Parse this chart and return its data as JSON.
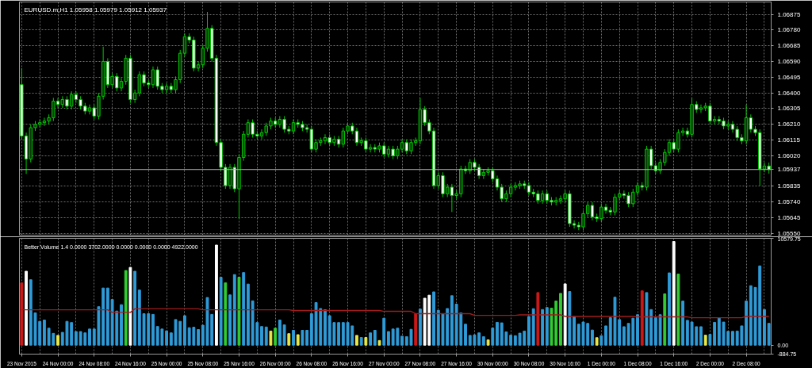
{
  "chart_data": [
    {
      "type": "candlestick",
      "title": "EURUSD.m,H1 1.05958 1.05979 1.05912 1.05937",
      "categories": [
        null,
        null,
        null,
        null,
        null,
        null,
        null,
        null,
        null,
        null,
        null,
        null,
        null,
        null,
        null,
        null,
        null,
        null,
        null,
        null,
        null,
        null,
        null,
        null,
        null,
        null,
        null,
        null,
        null,
        null,
        null,
        null,
        null,
        null,
        null,
        null,
        null,
        null,
        null,
        null,
        null,
        null,
        null,
        null,
        null,
        null,
        null,
        null,
        null,
        null,
        null,
        null,
        null,
        null,
        null,
        null,
        null,
        null,
        null,
        null,
        null,
        null,
        null,
        null,
        null,
        null,
        null,
        null,
        null,
        null,
        null,
        null,
        null,
        null,
        null,
        null,
        null,
        null,
        null,
        null,
        null,
        null,
        null,
        null,
        null,
        null,
        null,
        null,
        null,
        null,
        null,
        null,
        null,
        null,
        null,
        null,
        null,
        null,
        null,
        null,
        null,
        null,
        null,
        null,
        null,
        null,
        null,
        null,
        null,
        null,
        null,
        null,
        null,
        null,
        null,
        null,
        null,
        null,
        null,
        null,
        null,
        null,
        null,
        null,
        null,
        null,
        null,
        null,
        null,
        null,
        null,
        null,
        null,
        null,
        null,
        null,
        null,
        null,
        null,
        null,
        null,
        null,
        null,
        null,
        null,
        null,
        null,
        null,
        null,
        null,
        null,
        null,
        null,
        null,
        null,
        null,
        null,
        null,
        null,
        null,
        null,
        null,
        null,
        null,
        null,
        null
      ],
      "color": "#00c800",
      "ohlc": [
        [
          1.0645,
          1.0655,
          1.0612,
          1.0614
        ],
        [
          1.0614,
          1.0616,
          1.0591,
          1.06
        ],
        [
          1.06,
          1.0621,
          1.0598,
          1.0619
        ],
        [
          1.0619,
          1.0623,
          1.0617,
          1.0621
        ],
        [
          1.0621,
          1.0624,
          1.0619,
          1.0622
        ],
        [
          1.0622,
          1.0625,
          1.062,
          1.0623
        ],
        [
          1.0623,
          1.0627,
          1.0621,
          1.0625
        ],
        [
          1.0625,
          1.0637,
          1.0623,
          1.0635
        ],
        [
          1.0635,
          1.0637,
          1.0631,
          1.0633
        ],
        [
          1.0633,
          1.0638,
          1.0631,
          1.0636
        ],
        [
          1.0636,
          1.0638,
          1.063,
          1.0632
        ],
        [
          1.0632,
          1.0641,
          1.063,
          1.0639
        ],
        [
          1.0639,
          1.0641,
          1.0634,
          1.0636
        ],
        [
          1.0636,
          1.0638,
          1.063,
          1.0632
        ],
        [
          1.0632,
          1.0634,
          1.0627,
          1.0629
        ],
        [
          1.0629,
          1.0633,
          1.0627,
          1.0631
        ],
        [
          1.0631,
          1.0633,
          1.0624,
          1.0626
        ],
        [
          1.0626,
          1.064,
          1.0624,
          1.0638
        ],
        [
          1.0638,
          1.0668,
          1.0636,
          1.0659
        ],
        [
          1.0659,
          1.0661,
          1.0643,
          1.0645
        ],
        [
          1.0645,
          1.0652,
          1.0643,
          1.065
        ],
        [
          1.065,
          1.0652,
          1.0641,
          1.0643
        ],
        [
          1.0643,
          1.0649,
          1.0641,
          1.0647
        ],
        [
          1.0647,
          1.0663,
          1.0645,
          1.0661
        ],
        [
          1.0661,
          1.0663,
          1.0634,
          1.0636
        ],
        [
          1.0636,
          1.0642,
          1.0634,
          1.064
        ],
        [
          1.064,
          1.0653,
          1.0638,
          1.0651
        ],
        [
          1.0651,
          1.0653,
          1.0644,
          1.0646
        ],
        [
          1.0646,
          1.0648,
          1.0643,
          1.0645
        ],
        [
          1.0645,
          1.0656,
          1.0643,
          1.0654
        ],
        [
          1.0654,
          1.0656,
          1.0642,
          1.0644
        ],
        [
          1.0644,
          1.0646,
          1.064,
          1.0642
        ],
        [
          1.0642,
          1.0646,
          1.064,
          1.0644
        ],
        [
          1.0644,
          1.0646,
          1.064,
          1.0642
        ],
        [
          1.0642,
          1.065,
          1.064,
          1.0648
        ],
        [
          1.0648,
          1.0666,
          1.0646,
          1.0664
        ],
        [
          1.0664,
          1.0676,
          1.0662,
          1.0674
        ],
        [
          1.0674,
          1.0676,
          1.067,
          1.0672
        ],
        [
          1.0672,
          1.0674,
          1.0653,
          1.0655
        ],
        [
          1.0655,
          1.0659,
          1.0653,
          1.0657
        ],
        [
          1.0657,
          1.0669,
          1.0655,
          1.0667
        ],
        [
          1.0667,
          1.0689,
          1.0665,
          1.0679
        ],
        [
          1.0679,
          1.0681,
          1.0659,
          1.0661
        ],
        [
          1.0661,
          1.0663,
          1.0608,
          1.061
        ],
        [
          1.061,
          1.0612,
          1.0593,
          1.0595
        ],
        [
          1.0595,
          1.0597,
          1.0582,
          1.0584
        ],
        [
          1.0584,
          1.0597,
          1.0582,
          1.0595
        ],
        [
          1.0595,
          1.0597,
          1.058,
          1.0582
        ],
        [
          1.0582,
          1.0603,
          1.0564,
          1.0601
        ],
        [
          1.0601,
          1.0617,
          1.0599,
          1.0615
        ],
        [
          1.0615,
          1.0624,
          1.0613,
          1.0622
        ],
        [
          1.0622,
          1.0624,
          1.0613,
          1.0615
        ],
        [
          1.0615,
          1.0617,
          1.0612,
          1.0614
        ],
        [
          1.0614,
          1.0618,
          1.0612,
          1.0616
        ],
        [
          1.0616,
          1.0622,
          1.0614,
          1.062
        ],
        [
          1.062,
          1.0625,
          1.0618,
          1.0623
        ],
        [
          1.0623,
          1.0625,
          1.0619,
          1.0621
        ],
        [
          1.0621,
          1.0626,
          1.0619,
          1.0624
        ],
        [
          1.0624,
          1.0626,
          1.0616,
          1.0618
        ],
        [
          1.0618,
          1.062,
          1.0615,
          1.0617
        ],
        [
          1.0617,
          1.0624,
          1.0615,
          1.0622
        ],
        [
          1.0622,
          1.0624,
          1.0619,
          1.0621
        ],
        [
          1.0621,
          1.0623,
          1.0617,
          1.0619
        ],
        [
          1.0619,
          1.0621,
          1.0616,
          1.0618
        ],
        [
          1.0618,
          1.062,
          1.0604,
          1.0606
        ],
        [
          1.0606,
          1.0612,
          1.0604,
          1.061
        ],
        [
          1.061,
          1.0613,
          1.0608,
          1.0611
        ],
        [
          1.0611,
          1.0615,
          1.0609,
          1.0613
        ],
        [
          1.0613,
          1.0615,
          1.0608,
          1.061
        ],
        [
          1.061,
          1.0614,
          1.0608,
          1.0612
        ],
        [
          1.0612,
          1.0614,
          1.0607,
          1.0609
        ],
        [
          1.0609,
          1.0619,
          1.0607,
          1.0617
        ],
        [
          1.0617,
          1.0622,
          1.0615,
          1.062
        ],
        [
          1.062,
          1.0622,
          1.0615,
          1.0617
        ],
        [
          1.0617,
          1.0619,
          1.0608,
          1.061
        ],
        [
          1.061,
          1.0613,
          1.0608,
          1.0611
        ],
        [
          1.0611,
          1.0613,
          1.0604,
          1.0606
        ],
        [
          1.0606,
          1.0609,
          1.0604,
          1.0607
        ],
        [
          1.0607,
          1.0609,
          1.0604,
          1.0606
        ],
        [
          1.0606,
          1.061,
          1.0604,
          1.0608
        ],
        [
          1.0608,
          1.061,
          1.0601,
          1.0603
        ],
        [
          1.0603,
          1.0608,
          1.0601,
          1.0606
        ],
        [
          1.0606,
          1.0608,
          1.06,
          1.0602
        ],
        [
          1.0602,
          1.0608,
          1.06,
          1.0606
        ],
        [
          1.0606,
          1.0612,
          1.0604,
          1.061
        ],
        [
          1.061,
          1.0612,
          1.0603,
          1.0605
        ],
        [
          1.0605,
          1.0612,
          1.0603,
          1.061
        ],
        [
          1.061,
          1.0613,
          1.0608,
          1.0611
        ],
        [
          1.0611,
          1.0637,
          1.0609,
          1.063
        ],
        [
          1.063,
          1.0632,
          1.062,
          1.0622
        ],
        [
          1.0622,
          1.0624,
          1.0615,
          1.0617
        ],
        [
          1.0617,
          1.0619,
          1.0582,
          1.0584
        ],
        [
          1.0584,
          1.0592,
          1.0582,
          1.059
        ],
        [
          1.059,
          1.0592,
          1.0577,
          1.0579
        ],
        [
          1.0579,
          1.0585,
          1.0577,
          1.0583
        ],
        [
          1.0583,
          1.0585,
          1.0568,
          1.0578
        ],
        [
          1.0578,
          1.0581,
          1.0576,
          1.0579
        ],
        [
          1.0579,
          1.0596,
          1.0577,
          1.0594
        ],
        [
          1.0594,
          1.0596,
          1.0591,
          1.0593
        ],
        [
          1.0593,
          1.06,
          1.0591,
          1.0598
        ],
        [
          1.0598,
          1.06,
          1.0593,
          1.0595
        ],
        [
          1.0595,
          1.0597,
          1.0588,
          1.059
        ],
        [
          1.059,
          1.0594,
          1.0588,
          1.0592
        ],
        [
          1.0592,
          1.0595,
          1.059,
          1.0593
        ],
        [
          1.0593,
          1.0595,
          1.0586,
          1.0588
        ],
        [
          1.0588,
          1.059,
          1.0581,
          1.0583
        ],
        [
          1.0583,
          1.0585,
          1.0574,
          1.0576
        ],
        [
          1.0576,
          1.0581,
          1.0574,
          1.0579
        ],
        [
          1.0579,
          1.0585,
          1.0577,
          1.0583
        ],
        [
          1.0583,
          1.0586,
          1.0581,
          1.0584
        ],
        [
          1.0584,
          1.0587,
          1.0582,
          1.0585
        ],
        [
          1.0585,
          1.0587,
          1.0582,
          1.0584
        ],
        [
          1.0584,
          1.0586,
          1.0578,
          1.058
        ],
        [
          1.058,
          1.0582,
          1.0577,
          1.0579
        ],
        [
          1.0579,
          1.0581,
          1.0573,
          1.0575
        ],
        [
          1.0575,
          1.0581,
          1.0573,
          1.0579
        ],
        [
          1.0579,
          1.0581,
          1.0573,
          1.0575
        ],
        [
          1.0575,
          1.0577,
          1.0572,
          1.0574
        ],
        [
          1.0574,
          1.0577,
          1.0572,
          1.0575
        ],
        [
          1.0575,
          1.0578,
          1.0573,
          1.0576
        ],
        [
          1.0576,
          1.0581,
          1.0574,
          1.0579
        ],
        [
          1.0579,
          1.0581,
          1.0559,
          1.0561
        ],
        [
          1.0561,
          1.0563,
          1.0558,
          1.056
        ],
        [
          1.056,
          1.0562,
          1.0557,
          1.0559
        ],
        [
          1.0559,
          1.0569,
          1.0557,
          1.0567
        ],
        [
          1.0567,
          1.0574,
          1.0565,
          1.0572
        ],
        [
          1.0572,
          1.0574,
          1.0563,
          1.0565
        ],
        [
          1.0565,
          1.0567,
          1.0562,
          1.0564
        ],
        [
          1.0564,
          1.0573,
          1.0562,
          1.0571
        ],
        [
          1.0571,
          1.0573,
          1.0567,
          1.0569
        ],
        [
          1.0569,
          1.0571,
          1.0566,
          1.0568
        ],
        [
          1.0568,
          1.0579,
          1.0566,
          1.0577
        ],
        [
          1.0577,
          1.0581,
          1.0575,
          1.0579
        ],
        [
          1.0579,
          1.0581,
          1.0576,
          1.0578
        ],
        [
          1.0578,
          1.058,
          1.0571,
          1.0573
        ],
        [
          1.0573,
          1.0582,
          1.0571,
          1.058
        ],
        [
          1.058,
          1.0586,
          1.0578,
          1.0584
        ],
        [
          1.0584,
          1.0586,
          1.0581,
          1.0583
        ],
        [
          1.0583,
          1.0608,
          1.0581,
          1.0606
        ],
        [
          1.0606,
          1.0608,
          1.0594,
          1.0596
        ],
        [
          1.0596,
          1.0598,
          1.0591,
          1.0593
        ],
        [
          1.0593,
          1.06,
          1.0591,
          1.0598
        ],
        [
          1.0598,
          1.0606,
          1.0596,
          1.0604
        ],
        [
          1.0604,
          1.0612,
          1.0602,
          1.061
        ],
        [
          1.061,
          1.0612,
          1.0604,
          1.0606
        ],
        [
          1.0606,
          1.0618,
          1.0604,
          1.0616
        ],
        [
          1.0616,
          1.0619,
          1.0614,
          1.0617
        ],
        [
          1.0617,
          1.0619,
          1.0613,
          1.0615
        ],
        [
          1.0615,
          1.0637,
          1.0613,
          1.0633
        ],
        [
          1.0633,
          1.0635,
          1.0628,
          1.063
        ],
        [
          1.063,
          1.0633,
          1.0628,
          1.0631
        ],
        [
          1.0631,
          1.0634,
          1.0629,
          1.0632
        ],
        [
          1.0632,
          1.0634,
          1.0621,
          1.0623
        ],
        [
          1.0623,
          1.0626,
          1.0621,
          1.0624
        ],
        [
          1.0624,
          1.0626,
          1.0621,
          1.0623
        ],
        [
          1.0623,
          1.0625,
          1.0618,
          1.062
        ],
        [
          1.062,
          1.0623,
          1.0618,
          1.0621
        ],
        [
          1.0621,
          1.0623,
          1.0616,
          1.0618
        ],
        [
          1.0618,
          1.062,
          1.0611,
          1.0613
        ],
        [
          1.0613,
          1.0615,
          1.0609,
          1.0611
        ],
        [
          1.0611,
          1.0633,
          1.0609,
          1.0625
        ],
        [
          1.0625,
          1.0627,
          1.0616,
          1.0618
        ],
        [
          1.0618,
          1.062,
          1.0614,
          1.0616
        ],
        [
          1.0616,
          1.0618,
          1.0584,
          1.0594
        ],
        [
          1.0594,
          1.0598,
          1.0592,
          1.05958
        ],
        [
          1.05958,
          1.05979,
          1.05912,
          1.05937
        ]
      ],
      "ylim": [
        1.0554,
        1.0695
      ],
      "yticks": [
        1.06875,
        {
          "value": 1.0678,
          "label": "1.06780"
        },
        1.06685,
        {
          "value": 1.0659,
          "label": "1.06590"
        },
        1.06495,
        {
          "value": 1.064,
          "label": "1.06400"
        },
        1.06305,
        {
          "value": 1.0621,
          "label": "1.06210"
        },
        1.06115,
        {
          "value": 1.0602,
          "label": "1.06020"
        },
        1.05835,
        {
          "value": 1.0574,
          "label": "1.05740"
        },
        1.05645,
        {
          "value": 1.0555,
          "label": "1.05550"
        }
      ],
      "grid": true,
      "tick_labels": "y",
      "ref_lines": [
        {
          "axis": "y",
          "value": 1.05937,
          "label": "1.05937",
          "color": "#b4b4b4"
        }
      ]
    },
    {
      "type": "bar",
      "title": "Better Volume 1.4 0.0000 3702.0000 0.0000 0.0000 0.0000 4922.0000",
      "categories": [
        "23 Nov 2015",
        null,
        null,
        null,
        null,
        null,
        null,
        null,
        "24 Nov 00:00",
        null,
        null,
        null,
        null,
        null,
        null,
        null,
        "24 Nov 08:00",
        null,
        null,
        null,
        null,
        null,
        null,
        null,
        "24 Nov 16:00",
        null,
        null,
        null,
        null,
        null,
        null,
        null,
        "25 Nov 00:00",
        null,
        null,
        null,
        null,
        null,
        null,
        null,
        "25 Nov 08:00",
        null,
        null,
        null,
        null,
        null,
        null,
        null,
        "25 Nov 16:00",
        null,
        null,
        null,
        null,
        null,
        null,
        null,
        "26 Nov 00:00",
        null,
        null,
        null,
        null,
        null,
        null,
        null,
        "26 Nov 08:00",
        null,
        null,
        null,
        null,
        null,
        null,
        null,
        "26 Nov 16:00",
        null,
        null,
        null,
        null,
        null,
        null,
        null,
        "27 Nov 00:00",
        null,
        null,
        null,
        null,
        null,
        null,
        null,
        "27 Nov 08:00",
        null,
        null,
        null,
        null,
        null,
        null,
        null,
        "27 Nov 16:00",
        null,
        null,
        null,
        null,
        null,
        null,
        null,
        "30 Nov 00:00",
        null,
        null,
        null,
        null,
        null,
        null,
        null,
        "30 Nov 08:00",
        null,
        null,
        null,
        null,
        null,
        null,
        null,
        "30 Nov 16:00",
        null,
        null,
        null,
        null,
        null,
        null,
        null,
        "1 Dec 00:00",
        null,
        null,
        null,
        null,
        null,
        null,
        null,
        "1 Dec 08:00",
        null,
        null,
        null,
        null,
        null,
        null,
        null,
        "1 Dec 16:00",
        null,
        null,
        null,
        null,
        null,
        null,
        null,
        "2 Dec 00:00",
        null,
        null,
        null,
        null,
        null,
        null,
        null,
        "2 Dec 08:00",
        null,
        null,
        null,
        null,
        null
      ],
      "series": [
        {
          "type": "bar",
          "values": [
            6170,
            7320,
            6480,
            3200,
            2360,
            2490,
            1680,
            1170,
            970,
            1270,
            2360,
            2240,
            1350,
            1350,
            1220,
            1600,
            1600,
            3810,
            5660,
            5660,
            4520,
            3380,
            4010,
            7390,
            7700,
            7320,
            5460,
            3120,
            3120,
            3050,
            1850,
            1600,
            1420,
            1220,
            2540,
            2360,
            2920,
            1730,
            1780,
            1550,
            1980,
            4720,
            3050,
            9910,
            6730,
            6170,
            4980,
            6990,
            6730,
            7190,
            6050,
            4390,
            2240,
            1850,
            1800,
            1400,
            1680,
            2490,
            2010,
            1140,
            1470,
            1040,
            1470,
            1470,
            3120,
            4220,
            3630,
            3510,
            2920,
            2240,
            2240,
            2240,
            2240,
            1910,
            970,
            760,
            760,
            1220,
            1470,
            460,
            2670,
            1350,
            1600,
            1680,
            890,
            840,
            1570,
            3120,
            3580,
            4650,
            4950,
            5280,
            3450,
            3120,
            3630,
            4900,
            4060,
            3200,
            2080,
            970,
            1020,
            1220,
            840,
            530,
            1700,
            2260,
            2210,
            1320,
            990,
            940,
            1190,
            1400,
            2840,
            3610,
            5210,
            3530,
            3730,
            3660,
            4370,
            5130,
            6070,
            5310,
            2840,
            2080,
            2290,
            2160,
            1500,
            740,
            940,
            1910,
            2720,
            4750,
            2540,
            1830,
            2160,
            2670,
            3020,
            5380,
            5210,
            3530,
            2720,
            3020,
            5080,
            7160,
            10260,
            7040,
            4370,
            2460,
            2290,
            1830,
            1830,
            990,
            1070,
            2260,
            2720,
            2290,
            1370,
            1370,
            1400,
            1910,
            4370,
            5890,
            5720,
            7850,
            3530,
            2160
          ],
          "colors": [
            "#d01818",
            "#ffffff",
            "#2f9bd8",
            "#2f9bd8",
            "#2f9bd8",
            "#2f9bd8",
            "#2f9bd8",
            "#2f9bd8",
            "#e8e84a",
            "#2f9bd8",
            "#2f9bd8",
            "#2f9bd8",
            "#2f9bd8",
            "#2f9bd8",
            "#2f9bd8",
            "#2f9bd8",
            "#2f9bd8",
            "#2f9bd8",
            "#2f9bd8",
            "#2f9bd8",
            "#2f9bd8",
            "#2f9bd8",
            "#2f9bd8",
            "#32cd32",
            "#ffffff",
            "#2f9bd8",
            "#2f9bd8",
            "#2f9bd8",
            "#2f9bd8",
            "#2f9bd8",
            "#2f9bd8",
            "#2f9bd8",
            "#2f9bd8",
            "#2f9bd8",
            "#2f9bd8",
            "#2f9bd8",
            "#2f9bd8",
            "#2f9bd8",
            "#2f9bd8",
            "#2f9bd8",
            "#2f9bd8",
            "#2f9bd8",
            "#2f9bd8",
            "#ffffff",
            "#2f9bd8",
            "#32cd32",
            "#2f9bd8",
            "#2f9bd8",
            "#32cd32",
            "#2f9bd8",
            "#2f9bd8",
            "#2f9bd8",
            "#2f9bd8",
            "#2f9bd8",
            "#2f9bd8",
            "#e8e84a",
            "#32cd32",
            "#2f9bd8",
            "#2f9bd8",
            "#e8e84a",
            "#2f9bd8",
            "#e8e84a",
            "#2f9bd8",
            "#2f9bd8",
            "#2f9bd8",
            "#2f9bd8",
            "#2f9bd8",
            "#2f9bd8",
            "#2f9bd8",
            "#2f9bd8",
            "#2f9bd8",
            "#2f9bd8",
            "#2f9bd8",
            "#2f9bd8",
            "#e8e84a",
            "#2f9bd8",
            "#e8e84a",
            "#2f9bd8",
            "#2f9bd8",
            "#e8e84a",
            "#2f9bd8",
            "#2f9bd8",
            "#2f9bd8",
            "#2f9bd8",
            "#2f9bd8",
            "#2f9bd8",
            "#2f9bd8",
            "#d01818",
            "#2f9bd8",
            "#ffffff",
            "#ffffff",
            "#2f9bd8",
            "#2f9bd8",
            "#2f9bd8",
            "#2f9bd8",
            "#2f9bd8",
            "#2f9bd8",
            "#2f9bd8",
            "#2f9bd8",
            "#2f9bd8",
            "#2f9bd8",
            "#2f9bd8",
            "#2f9bd8",
            "#e8e84a",
            "#2f9bd8",
            "#2f9bd8",
            "#2f9bd8",
            "#2f9bd8",
            "#2f9bd8",
            "#2f9bd8",
            "#2f9bd8",
            "#2f9bd8",
            "#2f9bd8",
            "#2f9bd8",
            "#d01818",
            "#2f9bd8",
            "#2f9bd8",
            "#32cd32",
            "#32cd32",
            "#32cd32",
            "#ffffff",
            "#2f9bd8",
            "#2f9bd8",
            "#2f9bd8",
            "#2f9bd8",
            "#2f9bd8",
            "#2f9bd8",
            "#e8e84a",
            "#2f9bd8",
            "#2f9bd8",
            "#2f9bd8",
            "#2f9bd8",
            "#2f9bd8",
            "#2f9bd8",
            "#2f9bd8",
            "#2f9bd8",
            "#2f9bd8",
            "#d01818",
            "#2f9bd8",
            "#2f9bd8",
            "#2f9bd8",
            "#2f9bd8",
            "#32cd32",
            "#2f9bd8",
            "#ffffff",
            "#32cd32",
            "#2f9bd8",
            "#2f9bd8",
            "#2f9bd8",
            "#2f9bd8",
            "#2f9bd8",
            "#e8e84a",
            "#2f9bd8",
            "#2f9bd8",
            "#2f9bd8",
            "#2f9bd8",
            "#2f9bd8",
            "#2f9bd8",
            "#2f9bd8",
            "#2f9bd8",
            "#2f9bd8",
            "#2f9bd8",
            "#2f9bd8",
            "#2f9bd8",
            "#2f9bd8",
            "#2f9bd8"
          ]
        },
        {
          "type": "line",
          "color": "#a01c1c",
          "values": [
            3500,
            3500,
            3500,
            3500,
            3500,
            3500,
            3500,
            3500,
            3500,
            3500,
            3500,
            3500,
            3500,
            3500,
            3500,
            3500,
            3500,
            3500,
            3500,
            3500,
            3250,
            3250,
            3250,
            3250,
            3250,
            3600,
            3600,
            3600,
            3600,
            3600,
            3600,
            3600,
            3600,
            3600,
            3600,
            3600,
            3600,
            3600,
            3600,
            3600,
            3500,
            3500,
            3500,
            3500,
            3500,
            3500,
            3500,
            3500,
            3500,
            3500,
            3500,
            3500,
            3500,
            3500,
            3500,
            3500,
            3500,
            3500,
            3500,
            3500,
            3430,
            3430,
            3430,
            3430,
            3430,
            3430,
            3430,
            3430,
            3430,
            3430,
            3430,
            3430,
            3430,
            3430,
            3430,
            3430,
            3430,
            3430,
            3430,
            3430,
            3350,
            3350,
            3350,
            3350,
            3350,
            3350,
            3350,
            3120,
            3120,
            3120,
            3120,
            3120,
            3120,
            3120,
            3120,
            3120,
            3120,
            3120,
            3120,
            3120,
            2950,
            2950,
            2950,
            2950,
            2950,
            2950,
            2950,
            2950,
            2950,
            2950,
            3000,
            3000,
            3000,
            3000,
            3000,
            3000,
            3000,
            3000,
            3000,
            3000,
            2850,
            2850,
            2850,
            2850,
            2850,
            2850,
            2850,
            2850,
            2850,
            2850,
            2850,
            2850,
            2850,
            2850,
            2850,
            2850,
            2800,
            2800,
            2800,
            2800,
            2800,
            2800,
            2800,
            2800,
            2800,
            2800,
            2800,
            2800,
            2720,
            2720,
            2720,
            2720,
            2720,
            2720,
            2720,
            2720,
            2720,
            2720,
            2720,
            2720,
            2850,
            2850,
            2850,
            2850,
            2850,
            2850
          ]
        }
      ],
      "ylim": [
        -884.75,
        10579.75
      ],
      "yticks": [
        10579.75,
        {
          "value": 0,
          "label": "0.00"
        },
        -884.75
      ],
      "grid": "x"
    }
  ]
}
